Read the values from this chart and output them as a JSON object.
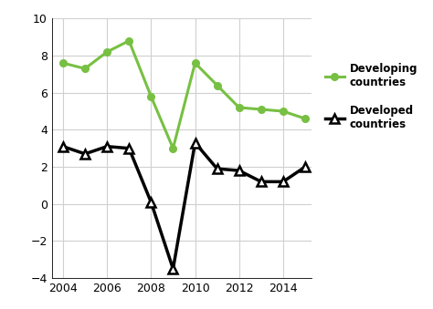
{
  "years": [
    2004,
    2005,
    2006,
    2007,
    2008,
    2009,
    2010,
    2011,
    2012,
    2013,
    2014,
    2015
  ],
  "developing": [
    7.6,
    7.3,
    8.2,
    8.8,
    5.8,
    3.0,
    7.6,
    6.4,
    5.2,
    5.1,
    5.0,
    4.6
  ],
  "developed": [
    3.1,
    2.7,
    3.1,
    3.0,
    0.1,
    -3.5,
    3.3,
    1.9,
    1.8,
    1.2,
    1.2,
    2.0
  ],
  "developing_color": "#77c043",
  "developed_color": "#000000",
  "ylim": [
    -4,
    10
  ],
  "yticks": [
    -4,
    -2,
    0,
    2,
    4,
    6,
    8,
    10
  ],
  "xticks": [
    2004,
    2006,
    2008,
    2010,
    2012,
    2014
  ],
  "xlim": [
    2003.5,
    2015.3
  ],
  "legend_developing": "Developing\ncountries",
  "legend_developed": "Developed\ncountries",
  "grid_color": "#d0d0d0",
  "figsize": [
    4.74,
    3.39
  ],
  "dpi": 100
}
